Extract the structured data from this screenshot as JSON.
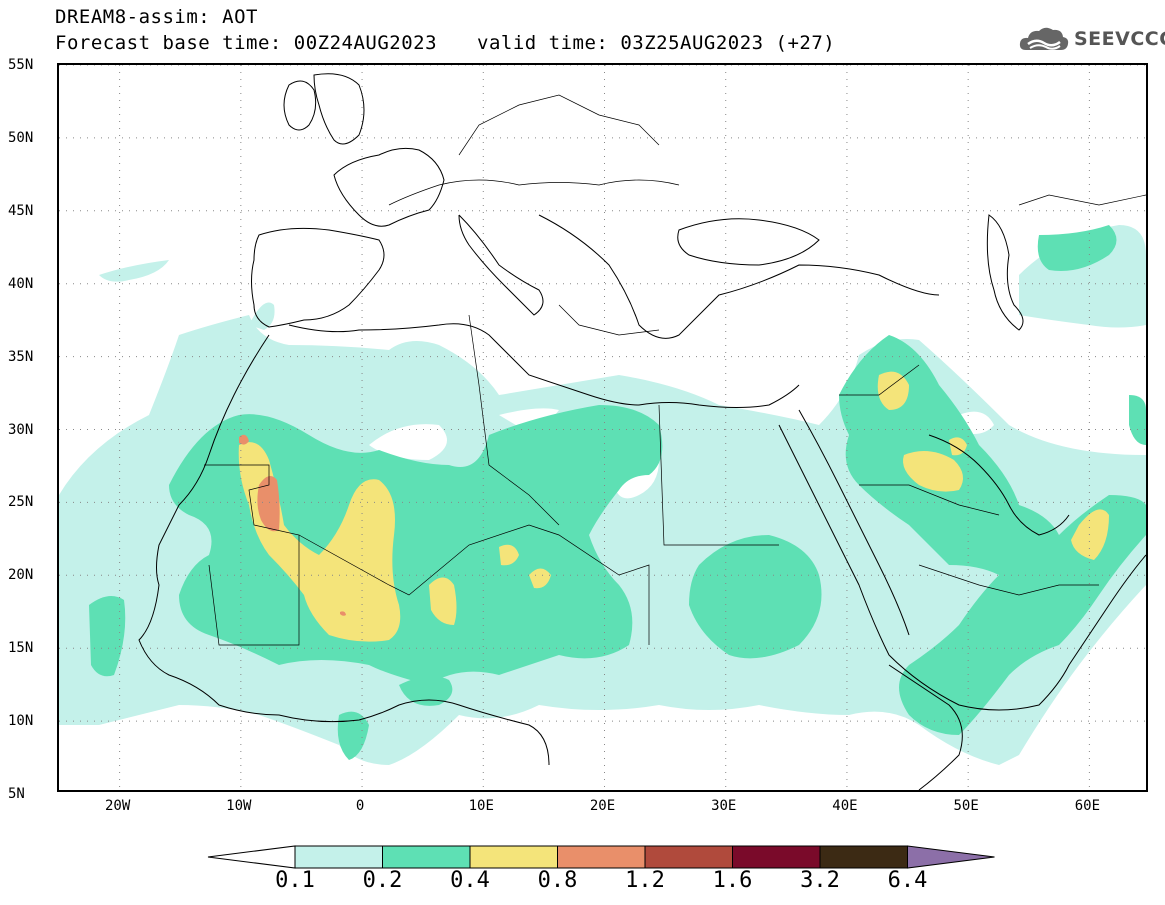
{
  "header": {
    "title_line1": "DREAM8-assim: AOT",
    "base_time": "Forecast base time: 00Z24AUG2023",
    "valid_time": "valid time: 03Z25AUG2023 (+27)"
  },
  "logo": {
    "text": "SEEVCCC",
    "icon": "cloud-icon"
  },
  "map": {
    "variable": "AOT",
    "lat_labels": [
      "55N",
      "50N",
      "45N",
      "40N",
      "35N",
      "30N",
      "25N",
      "20N",
      "15N",
      "10N",
      "5N"
    ],
    "lon_labels": [
      "20W",
      "10W",
      "0",
      "10E",
      "20E",
      "30E",
      "40E",
      "50E",
      "60E"
    ],
    "lat_range": [
      5,
      55
    ],
    "lon_range": [
      -25,
      65
    ],
    "grid": "dotted"
  },
  "colorbar": {
    "levels": [
      "0.1",
      "0.2",
      "0.4",
      "0.8",
      "1.2",
      "1.6",
      "3.2",
      "6.4"
    ],
    "colors": [
      "#ffffff",
      "#c4f1ea",
      "#5ee0b4",
      "#f4e47a",
      "#e98f6a",
      "#b04a3c",
      "#7a0a2a",
      "#3c2a14",
      "#8c6fa8"
    ]
  }
}
